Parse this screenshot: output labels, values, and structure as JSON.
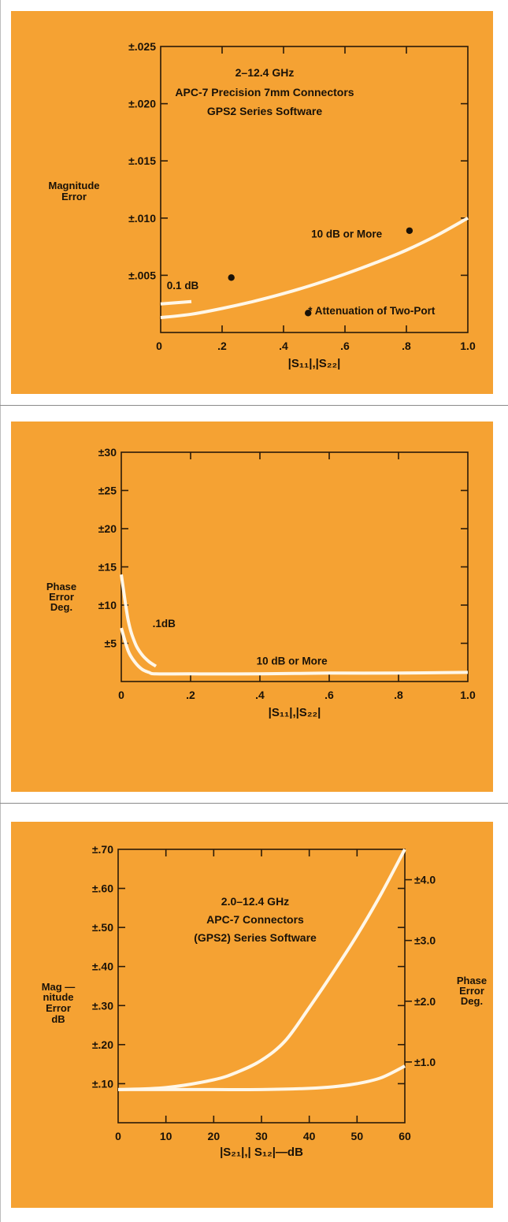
{
  "chart_data": [
    {
      "type": "line",
      "title_lines": [
        "2–12.4 GHz",
        "APC-7  Precision 7mm Connectors",
        "GPS2 Series Software"
      ],
      "ylabel_lines": [
        "Magnitude",
        "Error"
      ],
      "xlabel": "|S₁₁|,|S₂₂|",
      "xlim": [
        0,
        1.0
      ],
      "ylim": [
        0,
        0.025
      ],
      "x_ticks": [
        0,
        0.2,
        0.4,
        0.6,
        0.8,
        1.0
      ],
      "x_tick_labels": [
        "0",
        ".2",
        ".4",
        ".6",
        ".8",
        "1.0"
      ],
      "y_ticks": [
        0.005,
        0.01,
        0.015,
        0.02,
        0.025
      ],
      "y_tick_labels": [
        "±.005",
        "±.010",
        "±.015",
        "±.020",
        "±.025"
      ],
      "series": [
        {
          "name": "0.1 dB",
          "x": [
            0.0,
            0.1
          ],
          "y": [
            0.0025,
            0.0027
          ]
        },
        {
          "name": "10 dB or More",
          "x": [
            0.0,
            0.1,
            0.2,
            0.3,
            0.4,
            0.5,
            0.6,
            0.7,
            0.8,
            0.9,
            1.0
          ],
          "y": [
            0.0013,
            0.0016,
            0.0021,
            0.0027,
            0.0034,
            0.0042,
            0.0051,
            0.0061,
            0.0072,
            0.0085,
            0.01
          ]
        }
      ],
      "annotations": [
        {
          "text": "0.1 dB",
          "x": 0.02,
          "y": 0.0038
        },
        {
          "text": "10 dB or More",
          "x": 0.49,
          "y": 0.0083
        },
        {
          "text": "* Attenuation of Two-Port",
          "x": 0.48,
          "y": 0.0016
        }
      ],
      "markers": [
        {
          "x": 0.23,
          "y": 0.0048
        },
        {
          "x": 0.81,
          "y": 0.0089
        },
        {
          "x": 0.48,
          "y": 0.0017
        }
      ]
    },
    {
      "type": "line",
      "ylabel_lines": [
        "Phase",
        "Error",
        "Deg."
      ],
      "xlabel": "|S₁₁|,|S₂₂|",
      "xlim": [
        0,
        1.0
      ],
      "ylim": [
        0,
        30
      ],
      "x_ticks": [
        0,
        0.2,
        0.4,
        0.6,
        0.8,
        1.0
      ],
      "x_tick_labels": [
        "0",
        ".2",
        ".4",
        ".6",
        ".8",
        "1.0"
      ],
      "y_ticks": [
        5,
        10,
        15,
        20,
        25,
        30
      ],
      "y_tick_labels": [
        "±5",
        "±10",
        "±15",
        "±20",
        "±25",
        "±30"
      ],
      "series": [
        {
          "name": ".1dB",
          "x": [
            0.0,
            0.02,
            0.04,
            0.06,
            0.08,
            0.1
          ],
          "y": [
            14.0,
            8.0,
            5.0,
            3.5,
            2.6,
            2.0
          ]
        },
        {
          "name": "10 dB or More",
          "x": [
            0.0,
            0.02,
            0.04,
            0.06,
            0.08,
            0.1,
            0.2,
            0.4,
            0.6,
            0.8,
            1.0
          ],
          "y": [
            7.0,
            4.0,
            2.5,
            1.6,
            1.2,
            1.0,
            1.0,
            1.0,
            1.1,
            1.1,
            1.2
          ]
        }
      ],
      "annotations": [
        {
          "text": ".1dB",
          "x": 0.09,
          "y": 7.1
        },
        {
          "text": "10 dB or More",
          "x": 0.39,
          "y": 2.2
        }
      ]
    },
    {
      "type": "line",
      "title_lines": [
        "2.0–12.4 GHz",
        "APC-7 Connectors",
        "(GPS2) Series Software"
      ],
      "ylabel_lines": [
        "Mag —",
        "nitude",
        "Error",
        "dB"
      ],
      "y2label_lines": [
        "Phase",
        "Error",
        "Deg."
      ],
      "xlabel": "|S₂₁|,| S₁₂|—dB",
      "xlim": [
        0,
        60
      ],
      "ylim": [
        0,
        0.7
      ],
      "y2lim": [
        0,
        4.5
      ],
      "x_ticks": [
        0,
        10,
        20,
        30,
        40,
        50,
        60
      ],
      "x_tick_labels": [
        "0",
        "10",
        "20",
        "30",
        "40",
        "50",
        "60"
      ],
      "y_ticks": [
        0.1,
        0.2,
        0.3,
        0.4,
        0.5,
        0.6,
        0.7
      ],
      "y_tick_labels": [
        "±.10",
        "±.20",
        "±.30",
        "±.40",
        "±.50",
        "±.60",
        "±.70"
      ],
      "y2_ticks": [
        1.0,
        2.0,
        3.0,
        4.0
      ],
      "y2_tick_labels": [
        "±1.0",
        "±2.0",
        "±3.0",
        "±4.0"
      ],
      "series": [
        {
          "name": "magnitude",
          "x": [
            0,
            10,
            20,
            25,
            30,
            35,
            40,
            45,
            50,
            55,
            60
          ],
          "y": [
            0.085,
            0.09,
            0.11,
            0.13,
            0.16,
            0.21,
            0.295,
            0.385,
            0.48,
            0.585,
            0.7
          ]
        },
        {
          "name": "phase",
          "x": [
            0,
            10,
            20,
            30,
            40,
            45,
            50,
            55,
            60
          ],
          "y": [
            0.085,
            0.085,
            0.085,
            0.085,
            0.088,
            0.092,
            0.1,
            0.115,
            0.145
          ]
        }
      ]
    }
  ]
}
